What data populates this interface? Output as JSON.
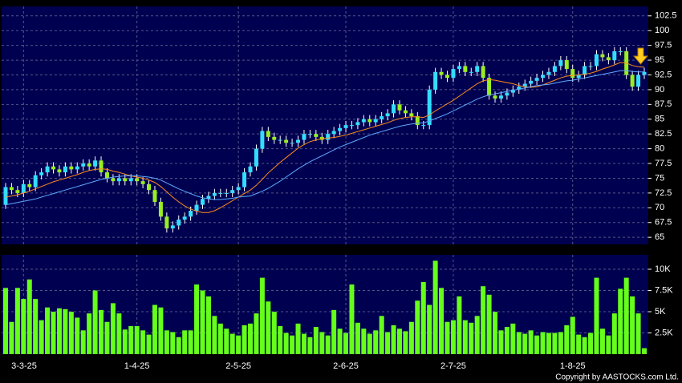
{
  "chart_data": [
    {
      "type": "candlestick",
      "up_color": "#33ddff",
      "down_color": "#99ee22",
      "open": [
        70.5,
        73.5,
        73,
        72.5,
        74,
        73.5,
        75.5,
        76,
        77,
        76.5,
        76,
        77,
        76.5,
        77,
        77.5,
        77,
        78,
        76,
        75,
        74.5,
        75,
        74.5,
        75,
        74.5,
        74,
        73,
        71,
        68.5,
        66.5,
        67,
        68,
        68.5,
        69.5,
        70.5,
        71.5,
        72,
        72.5,
        72.5,
        72.5,
        73,
        73.5,
        76,
        77,
        80,
        83,
        82,
        81.5,
        81.5,
        81,
        81,
        81.5,
        82.5,
        82.5,
        82,
        81.5,
        82.5,
        83,
        83.5,
        84,
        84,
        84.5,
        85,
        84.5,
        85,
        85.5,
        86,
        87.5,
        86.5,
        86,
        85.5,
        84,
        84,
        90,
        93,
        92.5,
        92,
        93.5,
        94,
        93,
        93,
        94,
        92,
        89,
        88.5,
        89,
        89.5,
        90,
        90.5,
        91,
        91.5,
        92,
        92.5,
        93,
        94,
        95,
        93.5,
        92,
        92.5,
        94,
        94,
        96,
        95.5,
        95,
        96.5,
        96.5,
        92.5,
        90.5,
        92.5
      ],
      "high": [
        74.2,
        74.2,
        73.7,
        74.7,
        74.7,
        76.2,
        76.7,
        77.7,
        77.7,
        77.2,
        77.7,
        77.7,
        77.7,
        78.2,
        78.2,
        78.7,
        78.7,
        76.7,
        75.7,
        75.7,
        75.7,
        75.7,
        75.7,
        75.2,
        74.7,
        73.7,
        71.7,
        69.2,
        67.7,
        68.7,
        69.2,
        70.2,
        71.2,
        72.2,
        72.7,
        73.2,
        73.2,
        73.2,
        73.7,
        74.2,
        76.7,
        77.7,
        80.7,
        83.7,
        83.7,
        82.7,
        82.2,
        82.2,
        81.7,
        82.2,
        83.2,
        83.2,
        83.2,
        82.7,
        83.2,
        83.7,
        84.2,
        84.7,
        84.7,
        85.2,
        85.7,
        85.7,
        85.7,
        86.2,
        86.7,
        88.2,
        88.2,
        87.2,
        86.7,
        86.2,
        84.7,
        90.7,
        93.7,
        93.7,
        93.2,
        94.2,
        94.7,
        94.7,
        93.7,
        94.7,
        94.7,
        92.7,
        89.7,
        89.7,
        90.2,
        90.7,
        91.2,
        91.7,
        92.2,
        92.7,
        93.2,
        93.7,
        94.7,
        95.7,
        95.7,
        94.2,
        93.2,
        94.7,
        94.7,
        96.7,
        96.7,
        96.2,
        97.2,
        97.2,
        97.2,
        93.2,
        93.2,
        93.7
      ],
      "low": [
        69.8,
        72.3,
        71.8,
        71.8,
        72.8,
        72.8,
        74.8,
        75.3,
        75.8,
        75.3,
        75.3,
        75.8,
        75.8,
        76.3,
        76.3,
        76.3,
        75.3,
        74.3,
        73.8,
        73.8,
        73.8,
        73.8,
        73.8,
        73.3,
        72.3,
        70.3,
        67.8,
        65.8,
        65.8,
        66.3,
        67.3,
        67.8,
        68.8,
        69.8,
        70.8,
        71.3,
        71.8,
        71.8,
        71.8,
        72.3,
        72.8,
        75.3,
        76.3,
        79.3,
        81.3,
        80.8,
        80.8,
        80.3,
        80.3,
        80.3,
        80.8,
        81.8,
        81.3,
        80.8,
        80.8,
        81.8,
        82.3,
        82.8,
        83.3,
        83.3,
        83.8,
        83.8,
        83.8,
        84.3,
        84.8,
        85.3,
        85.8,
        85.3,
        84.8,
        83.3,
        83.3,
        83.3,
        89.3,
        91.8,
        91.3,
        91.3,
        92.8,
        92.3,
        92.3,
        92.3,
        91.3,
        88.3,
        87.8,
        87.8,
        88.3,
        88.8,
        89.3,
        89.8,
        90.3,
        90.8,
        91.3,
        91.8,
        92.3,
        93.3,
        92.8,
        91.3,
        91.3,
        91.8,
        93.3,
        93.3,
        94.8,
        94.3,
        94.3,
        95.8,
        91.8,
        89.8,
        89.8,
        91.8
      ],
      "close": [
        73.5,
        73,
        72.5,
        74,
        73.5,
        75.5,
        76,
        77,
        76.5,
        76,
        77,
        76.5,
        77,
        77.5,
        77,
        78,
        76,
        75,
        74.5,
        75,
        74.5,
        75,
        74.5,
        74,
        73,
        71,
        68.5,
        66.5,
        67,
        68,
        68.5,
        69.5,
        70.5,
        71.5,
        72,
        72.5,
        72.5,
        72.5,
        73,
        73.5,
        76,
        77,
        80,
        83,
        82,
        81.5,
        81.5,
        81,
        81,
        81.5,
        82.5,
        82.5,
        82,
        81.5,
        82.5,
        83,
        83.5,
        84,
        84,
        84.5,
        85,
        84.5,
        85,
        85.5,
        86,
        87.5,
        86.5,
        86,
        85.5,
        84,
        84,
        90,
        93,
        92.5,
        92,
        93.5,
        94,
        93,
        93,
        94,
        92,
        89,
        88.5,
        89,
        89.5,
        90,
        90.5,
        91,
        91.5,
        92,
        92.5,
        93,
        94,
        95,
        93.5,
        92,
        92.5,
        94,
        94,
        96,
        95.5,
        95,
        96.5,
        96.5,
        92.5,
        90.5,
        92.5,
        93
      ],
      "series": [
        {
          "color": "#ff8c1a",
          "values": [
            71.8,
            72,
            72.2,
            72.5,
            72.8,
            73.2,
            73.6,
            74,
            74.4,
            74.7,
            75,
            75.3,
            75.6,
            76,
            76.3,
            76.5,
            76.6,
            76.5,
            76.2,
            76,
            75.7,
            75.4,
            75.2,
            75,
            74.7,
            74.3,
            73.6,
            72.7,
            71.8,
            71,
            70.3,
            69.8,
            69.4,
            69.2,
            69.2,
            69.5,
            70,
            70.6,
            71.2,
            71.8,
            72.4,
            73,
            73.8,
            74.8,
            75.9,
            76.8,
            77.7,
            78.5,
            79.3,
            80.1,
            80.7,
            81.2,
            81.5,
            81.7,
            81.8,
            81.9,
            82.1,
            82.3,
            82.6,
            82.9,
            83.2,
            83.5,
            83.8,
            84.1,
            84.4,
            84.8,
            85.1,
            85.3,
            85.4,
            85.4,
            85.3,
            85.7,
            86.4,
            87,
            87.6,
            88.2,
            88.9,
            89.6,
            90.3,
            91,
            91.5,
            91.7,
            91.6,
            91.4,
            91.2,
            91,
            90.7,
            90.5,
            90.4,
            90.5,
            90.8,
            91.2,
            91.6,
            92,
            92.3,
            92.4,
            92.5,
            92.6,
            92.8,
            93.1,
            93.5,
            93.8,
            94.2,
            94.6,
            94.5,
            94.1,
            93.9,
            93.8
          ]
        },
        {
          "color": "#5fa8ff",
          "values": [
            70.5,
            70.7,
            70.9,
            71.1,
            71.3,
            71.5,
            71.8,
            72.1,
            72.4,
            72.7,
            73,
            73.3,
            73.6,
            73.9,
            74.2,
            74.5,
            74.8,
            75,
            75.2,
            75.3,
            75.4,
            75.4,
            75.4,
            75.3,
            75.2,
            75,
            74.7,
            74.2,
            73.7,
            73.2,
            72.8,
            72.4,
            72,
            71.7,
            71.5,
            71.4,
            71.4,
            71.5,
            71.6,
            71.8,
            71.9,
            72,
            72.4,
            72.8,
            73.3,
            73.9,
            74.5,
            75.2,
            75.9,
            76.6,
            77.2,
            77.8,
            78.3,
            78.8,
            79.3,
            79.8,
            80.3,
            80.7,
            81.1,
            81.5,
            81.9,
            82.3,
            82.6,
            82.9,
            83.2,
            83.5,
            83.8,
            84,
            84.2,
            84.3,
            84.4,
            84.7,
            85.1,
            85.5,
            85.9,
            86.4,
            86.9,
            87.4,
            87.9,
            88.4,
            88.8,
            89.1,
            89.3,
            89.5,
            89.7,
            89.9,
            90.1,
            90.3,
            90.5,
            90.7,
            90.8,
            90.9,
            91.1,
            91.3,
            91.5,
            91.6,
            91.8,
            92,
            92.2,
            92.4,
            92.6,
            92.8,
            93,
            93.2,
            93.2,
            93.1,
            93,
            93
          ]
        }
      ],
      "ylim": [
        63.8,
        104.1
      ],
      "yticks": [
        65,
        67.5,
        70,
        72.5,
        75,
        77.5,
        80,
        82.5,
        85,
        87.5,
        90,
        92.5,
        95,
        97.5,
        100,
        102.5
      ],
      "grid": true
    },
    {
      "type": "bar",
      "color": "#66ff1a",
      "values": [
        7800,
        3800,
        7800,
        6500,
        8800,
        6500,
        4000,
        5500,
        5000,
        5400,
        5300,
        5000,
        4300,
        2800,
        4800,
        7500,
        5200,
        3800,
        6000,
        4800,
        2900,
        3300,
        3300,
        2800,
        2300,
        5800,
        5500,
        2800,
        2600,
        2000,
        2800,
        2800,
        8200,
        7500,
        6800,
        4500,
        3600,
        3000,
        2400,
        2200,
        3400,
        3600,
        4800,
        9000,
        6200,
        5000,
        3300,
        2500,
        2200,
        3600,
        2400,
        2000,
        3200,
        2600,
        2200,
        5200,
        3000,
        2500,
        8200,
        3700,
        3000,
        2400,
        2800,
        4500,
        2600,
        3400,
        3000,
        2700,
        3800,
        6300,
        8500,
        5800,
        11000,
        7800,
        3800,
        4000,
        6800,
        4000,
        3700,
        4500,
        8000,
        7000,
        5000,
        2800,
        3200,
        3600,
        2600,
        2400,
        2800,
        2200,
        2600,
        2500,
        2500,
        2600,
        3400,
        4400,
        2300,
        2000,
        2500,
        9000,
        3000,
        2200,
        4800,
        7700,
        9000,
        6800,
        4800,
        700
      ],
      "ylim": [
        0,
        11700
      ],
      "yticks": [
        {
          "value": 2500,
          "label": "2.5K"
        },
        {
          "value": 5000,
          "label": "5K"
        },
        {
          "value": 7500,
          "label": "7.5K"
        },
        {
          "value": 10000,
          "label": "10K"
        }
      ],
      "xticks": [
        {
          "value": 3,
          "label": "3-3-25"
        },
        {
          "value": 22,
          "label": "1-4-25"
        },
        {
          "value": 39,
          "label": "2-5-25"
        },
        {
          "value": 57,
          "label": "2-6-25"
        },
        {
          "value": 75,
          "label": "2-7-25"
        },
        {
          "value": 95,
          "label": "1-8-25"
        }
      ],
      "grid": true,
      "footnote": "Copyright by AASTOCKS.com Ltd."
    }
  ]
}
